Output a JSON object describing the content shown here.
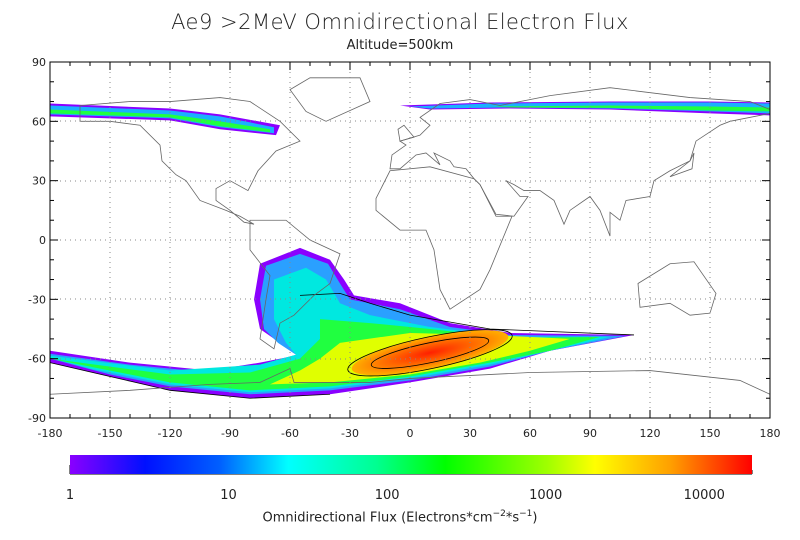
{
  "title": "Ae9 >2MeV Omnidirectional Electron Flux",
  "subtitle": "Altitude=500km",
  "axes": {
    "x_ticks": [
      "-180",
      "-150",
      "-120",
      "-90",
      "-60",
      "-30",
      "0",
      "30",
      "60",
      "90",
      "120",
      "150",
      "180"
    ],
    "y_ticks": [
      "90",
      "60",
      "30",
      "0",
      "-30",
      "-60",
      "-90"
    ],
    "xlim": [
      -180,
      180
    ],
    "ylim": [
      -90,
      90
    ]
  },
  "colorbar": {
    "ticks": [
      "1",
      "10",
      "100",
      "1000",
      "10000"
    ],
    "range": [
      1,
      20000
    ],
    "scale": "log",
    "label_main": "Omnidirectional Flux (Electrons*cm",
    "label_exp1": "−2",
    "label_mid": "*s",
    "label_exp2": "−1",
    "label_end": ")"
  },
  "map_data": {
    "type": "heatmap",
    "features": [
      "South Atlantic Anomaly peak ~10000-20000 near lon 10, lat -55",
      "Northern outer belt horn ~lat 55-70",
      "Southern outer belt horn ~lat -55 to -78"
    ]
  }
}
